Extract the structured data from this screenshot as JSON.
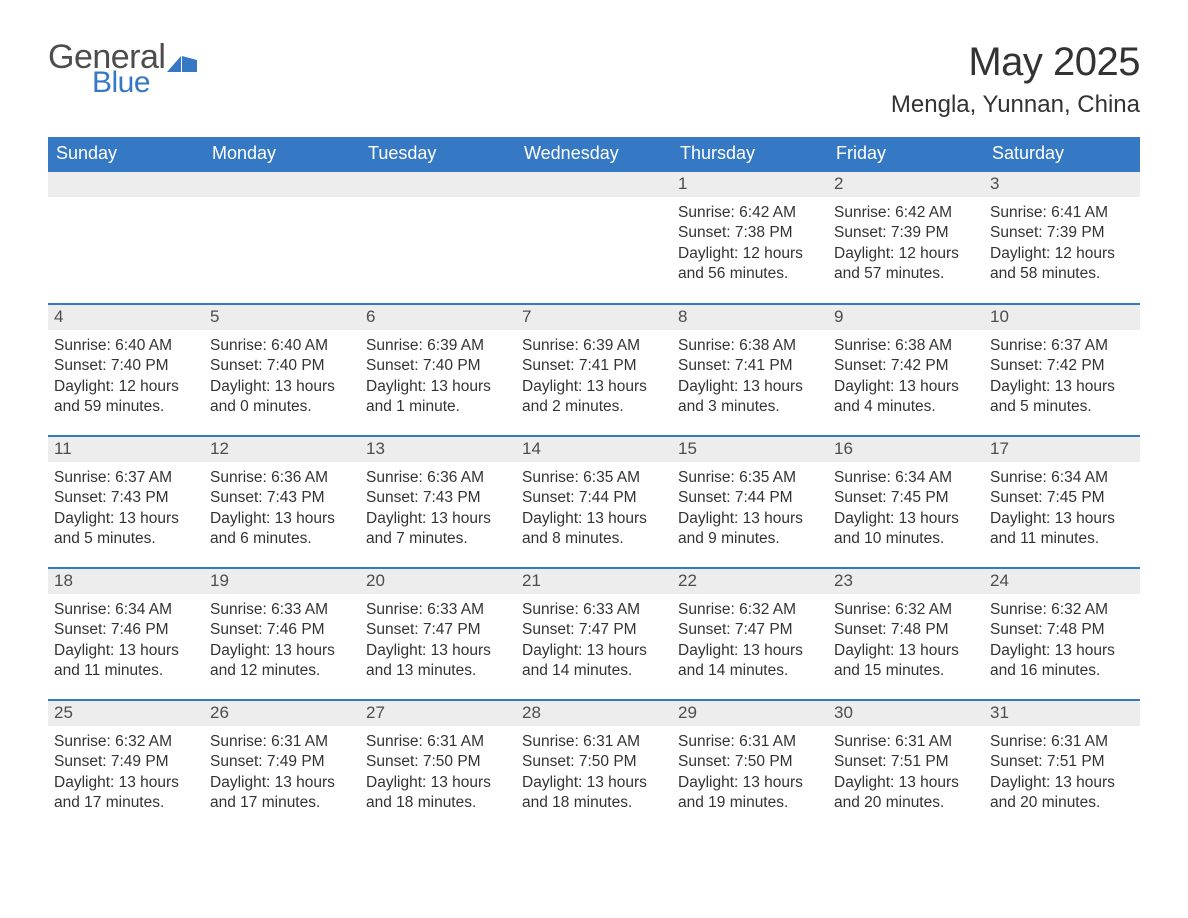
{
  "logo": {
    "general": "General",
    "blue": "Blue"
  },
  "title": "May 2025",
  "location": "Mengla, Yunnan, China",
  "colors": {
    "header_bg": "#3578c4",
    "header_text": "#ffffff",
    "daynum_bg": "#ededed",
    "border": "#3578c4",
    "body_text": "#333333",
    "logo_gray": "#4d4d4d",
    "logo_blue": "#3578c4",
    "page_bg": "#ffffff"
  },
  "day_headers": [
    "Sunday",
    "Monday",
    "Tuesday",
    "Wednesday",
    "Thursday",
    "Friday",
    "Saturday"
  ],
  "weeks": [
    [
      null,
      null,
      null,
      null,
      {
        "n": "1",
        "sr": "6:42 AM",
        "ss": "7:38 PM",
        "dl": "12 hours and 56 minutes."
      },
      {
        "n": "2",
        "sr": "6:42 AM",
        "ss": "7:39 PM",
        "dl": "12 hours and 57 minutes."
      },
      {
        "n": "3",
        "sr": "6:41 AM",
        "ss": "7:39 PM",
        "dl": "12 hours and 58 minutes."
      }
    ],
    [
      {
        "n": "4",
        "sr": "6:40 AM",
        "ss": "7:40 PM",
        "dl": "12 hours and 59 minutes."
      },
      {
        "n": "5",
        "sr": "6:40 AM",
        "ss": "7:40 PM",
        "dl": "13 hours and 0 minutes."
      },
      {
        "n": "6",
        "sr": "6:39 AM",
        "ss": "7:40 PM",
        "dl": "13 hours and 1 minute."
      },
      {
        "n": "7",
        "sr": "6:39 AM",
        "ss": "7:41 PM",
        "dl": "13 hours and 2 minutes."
      },
      {
        "n": "8",
        "sr": "6:38 AM",
        "ss": "7:41 PM",
        "dl": "13 hours and 3 minutes."
      },
      {
        "n": "9",
        "sr": "6:38 AM",
        "ss": "7:42 PM",
        "dl": "13 hours and 4 minutes."
      },
      {
        "n": "10",
        "sr": "6:37 AM",
        "ss": "7:42 PM",
        "dl": "13 hours and 5 minutes."
      }
    ],
    [
      {
        "n": "11",
        "sr": "6:37 AM",
        "ss": "7:43 PM",
        "dl": "13 hours and 5 minutes."
      },
      {
        "n": "12",
        "sr": "6:36 AM",
        "ss": "7:43 PM",
        "dl": "13 hours and 6 minutes."
      },
      {
        "n": "13",
        "sr": "6:36 AM",
        "ss": "7:43 PM",
        "dl": "13 hours and 7 minutes."
      },
      {
        "n": "14",
        "sr": "6:35 AM",
        "ss": "7:44 PM",
        "dl": "13 hours and 8 minutes."
      },
      {
        "n": "15",
        "sr": "6:35 AM",
        "ss": "7:44 PM",
        "dl": "13 hours and 9 minutes."
      },
      {
        "n": "16",
        "sr": "6:34 AM",
        "ss": "7:45 PM",
        "dl": "13 hours and 10 minutes."
      },
      {
        "n": "17",
        "sr": "6:34 AM",
        "ss": "7:45 PM",
        "dl": "13 hours and 11 minutes."
      }
    ],
    [
      {
        "n": "18",
        "sr": "6:34 AM",
        "ss": "7:46 PM",
        "dl": "13 hours and 11 minutes."
      },
      {
        "n": "19",
        "sr": "6:33 AM",
        "ss": "7:46 PM",
        "dl": "13 hours and 12 minutes."
      },
      {
        "n": "20",
        "sr": "6:33 AM",
        "ss": "7:47 PM",
        "dl": "13 hours and 13 minutes."
      },
      {
        "n": "21",
        "sr": "6:33 AM",
        "ss": "7:47 PM",
        "dl": "13 hours and 14 minutes."
      },
      {
        "n": "22",
        "sr": "6:32 AM",
        "ss": "7:47 PM",
        "dl": "13 hours and 14 minutes."
      },
      {
        "n": "23",
        "sr": "6:32 AM",
        "ss": "7:48 PM",
        "dl": "13 hours and 15 minutes."
      },
      {
        "n": "24",
        "sr": "6:32 AM",
        "ss": "7:48 PM",
        "dl": "13 hours and 16 minutes."
      }
    ],
    [
      {
        "n": "25",
        "sr": "6:32 AM",
        "ss": "7:49 PM",
        "dl": "13 hours and 17 minutes."
      },
      {
        "n": "26",
        "sr": "6:31 AM",
        "ss": "7:49 PM",
        "dl": "13 hours and 17 minutes."
      },
      {
        "n": "27",
        "sr": "6:31 AM",
        "ss": "7:50 PM",
        "dl": "13 hours and 18 minutes."
      },
      {
        "n": "28",
        "sr": "6:31 AM",
        "ss": "7:50 PM",
        "dl": "13 hours and 18 minutes."
      },
      {
        "n": "29",
        "sr": "6:31 AM",
        "ss": "7:50 PM",
        "dl": "13 hours and 19 minutes."
      },
      {
        "n": "30",
        "sr": "6:31 AM",
        "ss": "7:51 PM",
        "dl": "13 hours and 20 minutes."
      },
      {
        "n": "31",
        "sr": "6:31 AM",
        "ss": "7:51 PM",
        "dl": "13 hours and 20 minutes."
      }
    ]
  ],
  "labels": {
    "sunrise": "Sunrise: ",
    "sunset": "Sunset: ",
    "daylight": "Daylight: "
  }
}
